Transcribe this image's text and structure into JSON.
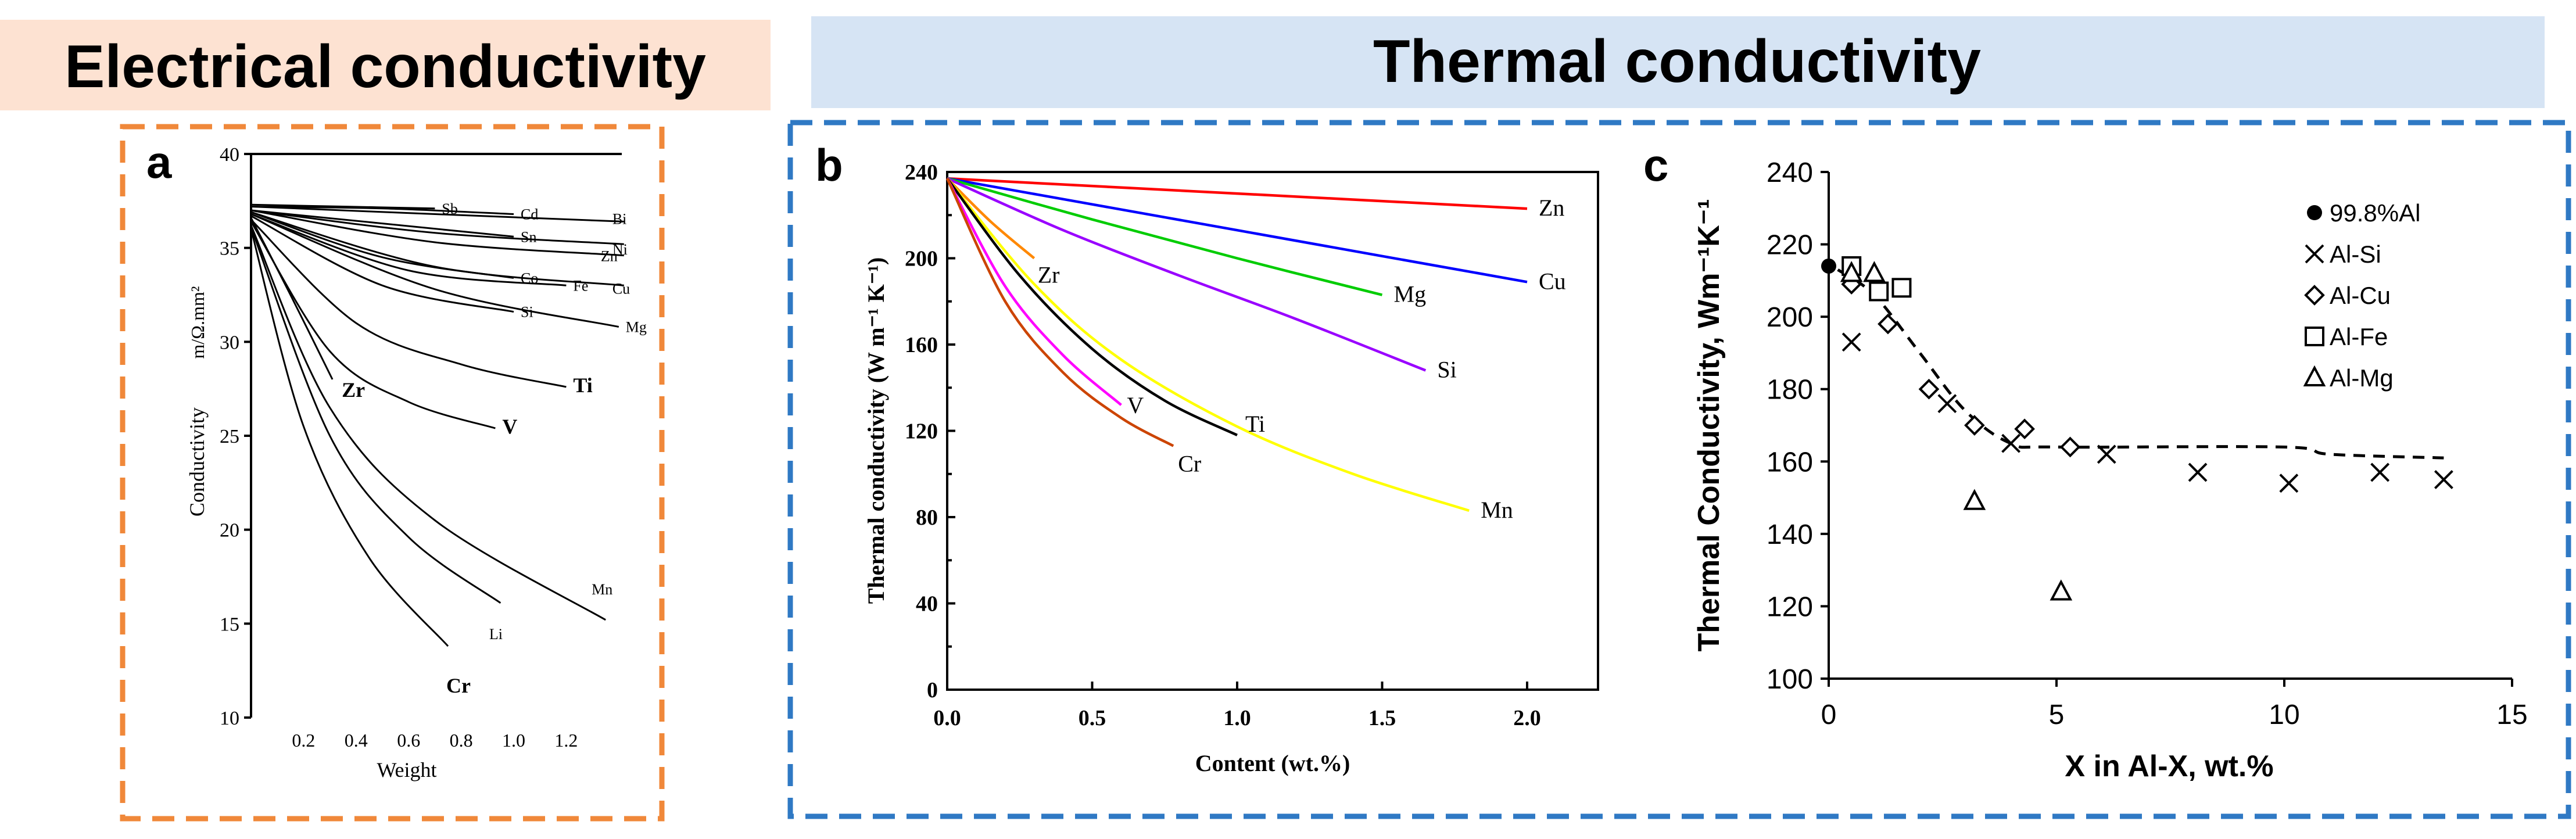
{
  "headers": {
    "electrical": "Electrical conductivity",
    "thermal": "Thermal conductivity"
  },
  "colors": {
    "electrical_header_bg": "#fde2d2",
    "thermal_header_bg": "#d6e4f4",
    "electrical_border": "#f0883a",
    "thermal_border": "#2f79c4"
  },
  "chart_data": [
    {
      "panel": "a",
      "type": "line",
      "title": "",
      "xlabel": "Weight",
      "ylabel": "Conductivity",
      "ylabel_units": "m/Ω.mm²",
      "xlim": [
        0,
        1.4
      ],
      "ylim": [
        10,
        40
      ],
      "xticks": [
        0.2,
        0.4,
        0.6,
        0.8,
        1.0,
        1.2
      ],
      "xtick_labels": [
        "0.2",
        "0.4",
        "0.6",
        "0.8",
        "1.0",
        "1.2"
      ],
      "yticks": [
        10,
        15,
        20,
        25,
        30,
        35,
        40
      ],
      "series": [
        {
          "name": "Sb",
          "label": "Sb",
          "bold": false,
          "x": [
            0,
            0.35,
            0.7
          ],
          "y": [
            37.3,
            37.2,
            37.1
          ]
        },
        {
          "name": "Cd",
          "label": "Cd",
          "bold": false,
          "x": [
            0,
            0.5,
            1.0
          ],
          "y": [
            37.2,
            37.1,
            36.8
          ]
        },
        {
          "name": "Bi",
          "label": "Bi",
          "bold": false,
          "x": [
            0,
            0.7,
            1.42
          ],
          "y": [
            37.2,
            36.8,
            36.4
          ]
        },
        {
          "name": "Sn",
          "label": "Sn",
          "bold": false,
          "x": [
            0,
            0.5,
            1.0
          ],
          "y": [
            37.0,
            36.3,
            35.6
          ]
        },
        {
          "name": "Ni",
          "label": "Ni",
          "bold": false,
          "x": [
            0,
            0.7,
            1.42
          ],
          "y": [
            37.0,
            35.8,
            35.2
          ]
        },
        {
          "name": "Zn",
          "label": "Zn",
          "bold": false,
          "x": [
            0,
            0.7,
            1.42
          ],
          "y": [
            37.0,
            35.3,
            34.6
          ]
        },
        {
          "name": "Co",
          "label": "Co",
          "bold": false,
          "x": [
            0,
            0.5,
            1.0
          ],
          "y": [
            36.9,
            34.5,
            33.4
          ]
        },
        {
          "name": "Cu",
          "label": "Cu",
          "bold": false,
          "x": [
            0,
            0.7,
            1.42
          ],
          "y": [
            36.9,
            34.0,
            33.0
          ]
        },
        {
          "name": "Fe",
          "label": "Fe",
          "bold": false,
          "x": [
            0,
            0.6,
            1.2
          ],
          "y": [
            36.8,
            33.8,
            33.0
          ]
        },
        {
          "name": "Mg",
          "label": "Mg",
          "bold": false,
          "x": [
            0,
            0.7,
            1.4
          ],
          "y": [
            36.8,
            32.8,
            30.8
          ]
        },
        {
          "name": "Si",
          "label": "Si",
          "bold": false,
          "x": [
            0,
            0.5,
            1.0
          ],
          "y": [
            36.7,
            33.0,
            31.6
          ]
        },
        {
          "name": "Zr",
          "label": "Zr",
          "bold": true,
          "x": [
            0,
            0.15,
            0.31
          ],
          "y": [
            36.6,
            32.5,
            28.0
          ]
        },
        {
          "name": "Ti",
          "label": "Ti",
          "bold": true,
          "x": [
            0,
            0.4,
            0.8,
            1.2
          ],
          "y": [
            36.5,
            31.0,
            28.8,
            27.6
          ]
        },
        {
          "name": "V",
          "label": "V",
          "bold": true,
          "x": [
            0,
            0.3,
            0.6,
            0.93
          ],
          "y": [
            36.4,
            29.5,
            26.8,
            25.4
          ]
        },
        {
          "name": "Mn",
          "label": "Mn",
          "bold": false,
          "x": [
            0,
            0.3,
            0.7,
            1.35
          ],
          "y": [
            36.2,
            26.5,
            20.5,
            15.2
          ]
        },
        {
          "name": "Li",
          "label": "Li",
          "bold": false,
          "x": [
            0,
            0.3,
            0.6,
            0.95
          ],
          "y": [
            36.1,
            25.0,
            19.6,
            16.1
          ]
        },
        {
          "name": "Cr",
          "label": "Cr",
          "bold": true,
          "x": [
            0,
            0.2,
            0.45,
            0.75
          ],
          "y": [
            36.0,
            25.5,
            18.5,
            13.8
          ]
        }
      ]
    },
    {
      "panel": "b",
      "type": "line",
      "title": "",
      "xlabel": "Content (wt.%)",
      "ylabel": "Thermal conductivity (W m⁻¹ K⁻¹)",
      "xlim": [
        0,
        2.25
      ],
      "ylim": [
        0,
        240
      ],
      "xticks": [
        0.0,
        0.5,
        1.0,
        1.5,
        2.0
      ],
      "xtick_labels": [
        "0.0",
        "0.5",
        "1.0",
        "1.5",
        "2.0"
      ],
      "yticks": [
        0,
        40,
        80,
        120,
        160,
        200,
        240
      ],
      "series": [
        {
          "name": "Zn",
          "label": "Zn",
          "color": "#ff0000",
          "x": [
            0,
            1.0,
            2.0
          ],
          "y": [
            237,
            230,
            223
          ]
        },
        {
          "name": "Cu",
          "label": "Cu",
          "color": "#0000ff",
          "x": [
            0,
            0.5,
            1.0,
            1.5,
            2.0
          ],
          "y": [
            237,
            225,
            213,
            201,
            189
          ]
        },
        {
          "name": "Mg",
          "label": "Mg",
          "color": "#00cc00",
          "x": [
            0,
            0.5,
            1.0,
            1.5
          ],
          "y": [
            237,
            218,
            200,
            183
          ]
        },
        {
          "name": "Si",
          "label": "Si",
          "color": "#9900ff",
          "x": [
            0,
            0.4,
            0.8,
            1.2,
            1.65
          ],
          "y": [
            237,
            213,
            192,
            172,
            148
          ]
        },
        {
          "name": "Zr",
          "label": "Zr",
          "color": "#ff8800",
          "x": [
            0,
            0.15,
            0.3
          ],
          "y": [
            237,
            217,
            200
          ]
        },
        {
          "name": "Mn",
          "label": "Mn",
          "color": "#ffff00",
          "x": [
            0,
            0.3,
            0.6,
            1.0,
            1.4,
            1.8
          ],
          "y": [
            237,
            188,
            153,
            122,
            100,
            83
          ]
        },
        {
          "name": "Ti",
          "label": "Ti",
          "color": "#000000",
          "x": [
            0,
            0.25,
            0.5,
            0.75,
            1.0
          ],
          "y": [
            237,
            192,
            158,
            134,
            118
          ]
        },
        {
          "name": "V",
          "label": "V",
          "color": "#ff00ff",
          "x": [
            0,
            0.2,
            0.4,
            0.6
          ],
          "y": [
            237,
            187,
            155,
            132
          ]
        },
        {
          "name": "Cr",
          "label": "Cr",
          "color": "#cc4400",
          "x": [
            0,
            0.2,
            0.4,
            0.6,
            0.78
          ],
          "y": [
            237,
            180,
            147,
            126,
            113
          ]
        }
      ]
    },
    {
      "panel": "c",
      "type": "scatter",
      "title": "",
      "xlabel": "X in Al-X, wt.%",
      "ylabel": "Thermal Conductivity, Wm⁻¹K⁻¹",
      "xlim": [
        0,
        15
      ],
      "ylim": [
        100,
        240
      ],
      "xticks": [
        0,
        5,
        10,
        15
      ],
      "yticks": [
        100,
        120,
        140,
        160,
        180,
        200,
        220,
        240
      ],
      "legend_position": "top-right",
      "series": [
        {
          "name": "99.8%Al",
          "marker": "filled-circle",
          "x": [
            0
          ],
          "y": [
            214
          ]
        },
        {
          "name": "Al-Si",
          "marker": "x",
          "x": [
            0.5,
            2.6,
            4.0,
            6.1,
            8.1,
            10.1,
            12.1,
            13.5
          ],
          "y": [
            193,
            176,
            165,
            162,
            157,
            154,
            157,
            155
          ]
        },
        {
          "name": "Al-Cu",
          "marker": "open-diamond",
          "x": [
            0.5,
            1.3,
            2.2,
            3.2,
            4.3,
            5.3
          ],
          "y": [
            209,
            198,
            180,
            170,
            169,
            164
          ]
        },
        {
          "name": "Al-Fe",
          "marker": "open-square",
          "x": [
            0.5,
            1.1,
            1.6
          ],
          "y": [
            214,
            207,
            208
          ]
        },
        {
          "name": "Al-Mg",
          "marker": "open-triangle",
          "x": [
            0.5,
            1.0,
            3.2,
            5.1
          ],
          "y": [
            212,
            212,
            149,
            124
          ]
        }
      ],
      "trend_line": {
        "style": "dashed",
        "x": [
          0.2,
          1.0,
          2.0,
          3.0,
          4.0,
          5.0,
          10.0,
          11.0,
          13.5
        ],
        "y": [
          213,
          206,
          190,
          174,
          165,
          164,
          164,
          162,
          161
        ]
      }
    }
  ]
}
